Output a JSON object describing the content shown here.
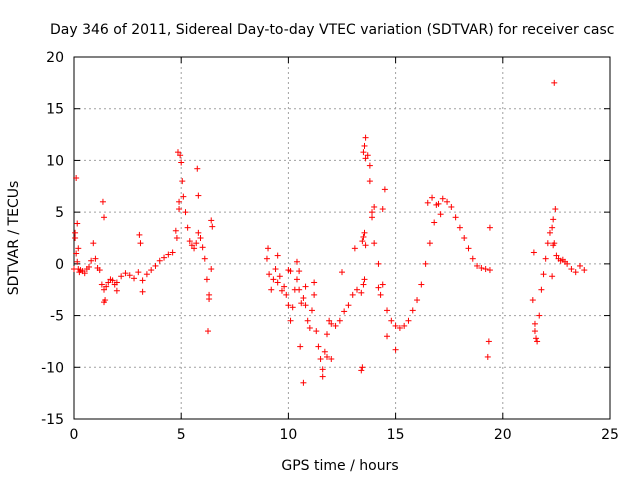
{
  "chart_data": {
    "type": "scatter",
    "title": "Day 346 of 2011, Sidereal Day-to-day VTEC variation (SDTVAR) for receiver casc",
    "xlabel": "GPS time / hours",
    "ylabel": "SDTVAR / TECUs",
    "xlim": [
      0,
      25
    ],
    "ylim": [
      -15,
      20
    ],
    "xticks": [
      0,
      5,
      10,
      15,
      20,
      25
    ],
    "yticks": [
      -15,
      -10,
      -5,
      0,
      5,
      10,
      15,
      20
    ],
    "xtick_labels": [
      "0",
      "5",
      "10",
      "15",
      "20",
      "25"
    ],
    "ytick_labels": [
      "-15",
      "-10",
      "-5",
      "0",
      "5",
      "10",
      "15",
      "20"
    ],
    "grid": true,
    "marker": "+",
    "series": [
      {
        "name": "SDTVAR",
        "color": "#ff0000",
        "x": [
          0.0,
          0.05,
          0.1,
          0.15,
          0.2,
          0.25,
          0.3,
          0.4,
          0.5,
          0.6,
          0.7,
          0.8,
          0.9,
          1.0,
          1.1,
          1.2,
          1.3,
          1.4,
          1.5,
          1.6,
          1.7,
          1.8,
          1.9,
          2.0,
          2.2,
          2.4,
          2.6,
          2.8,
          3.0,
          3.2,
          3.4,
          3.6,
          3.8,
          4.0,
          4.2,
          4.4,
          4.6,
          4.8,
          4.9,
          4.95,
          5.0,
          5.05,
          5.1,
          5.2,
          5.3,
          5.4,
          5.5,
          5.6,
          5.7,
          5.8,
          5.9,
          6.0,
          6.1,
          6.2,
          6.3,
          6.4,
          0.1,
          0.15,
          1.35,
          1.4,
          1.45,
          3.05,
          3.1,
          4.85,
          4.9,
          5.75,
          6.25,
          6.4,
          6.45,
          0.05,
          0.2,
          1.4,
          2.0,
          3.2,
          4.75,
          5.8,
          6.3,
          9.0,
          9.1,
          9.2,
          9.3,
          9.4,
          9.5,
          9.6,
          9.7,
          9.8,
          9.9,
          10.0,
          10.1,
          10.2,
          10.3,
          10.4,
          10.5,
          10.6,
          10.7,
          10.8,
          10.9,
          11.0,
          11.1,
          11.2,
          11.3,
          11.4,
          11.5,
          11.6,
          11.7,
          11.8,
          11.9,
          12.0,
          12.2,
          12.4,
          12.6,
          12.8,
          13.0,
          13.2,
          13.4,
          13.5,
          13.55,
          13.6,
          13.7,
          13.8,
          13.9,
          14.0,
          14.2,
          14.4,
          14.6,
          14.8,
          15.0,
          15.2,
          15.4,
          15.6,
          15.8,
          16.0,
          16.2,
          16.4,
          16.6,
          16.8,
          17.0,
          17.2,
          17.4,
          17.6,
          17.8,
          18.0,
          18.2,
          18.4,
          18.6,
          18.8,
          19.0,
          19.2,
          19.4,
          10.0,
          10.5,
          10.55,
          10.7,
          11.6,
          11.8,
          12.0,
          13.4,
          13.45,
          13.5,
          13.55,
          13.6,
          13.8,
          14.5,
          14.4,
          19.3,
          19.35,
          19.4,
          13.5,
          13.45,
          13.55,
          13.6,
          14.2,
          14.3,
          13.9,
          14.0,
          14.6,
          15.0,
          16.5,
          16.7,
          16.9,
          17.1,
          9.05,
          9.5,
          10.1,
          10.4,
          10.8,
          11.2,
          12.5,
          13.1,
          21.4,
          21.5,
          21.6,
          21.7,
          21.8,
          21.9,
          22.0,
          22.1,
          22.2,
          22.3,
          22.4,
          22.5,
          22.6,
          22.7,
          22.8,
          22.9,
          23.0,
          23.2,
          23.4,
          23.6,
          23.8,
          22.35,
          22.4,
          22.45,
          21.45,
          21.55,
          22.35,
          22.3,
          21.5
        ],
        "y": [
          -0.5,
          2.5,
          1.0,
          0.2,
          -0.5,
          -0.8,
          -0.6,
          -0.7,
          -0.9,
          -0.5,
          -0.3,
          0.3,
          2.0,
          0.5,
          -0.4,
          -0.6,
          -2.0,
          -2.5,
          -2.2,
          -1.8,
          -1.5,
          -1.6,
          -2.0,
          -1.8,
          -1.2,
          -0.9,
          -1.1,
          -1.4,
          -0.8,
          -1.6,
          -1.0,
          -0.6,
          -0.2,
          0.3,
          0.6,
          0.9,
          1.1,
          2.5,
          6.0,
          10.5,
          9.8,
          8.0,
          6.5,
          5.0,
          3.5,
          2.2,
          1.8,
          1.5,
          2.0,
          3.0,
          2.5,
          1.6,
          0.5,
          -1.5,
          -3.0,
          -0.5,
          8.3,
          3.9,
          6.0,
          4.5,
          -3.5,
          2.8,
          2.0,
          10.8,
          5.3,
          9.2,
          -6.5,
          4.2,
          3.6,
          3.0,
          1.5,
          -3.7,
          -2.6,
          -2.7,
          3.2,
          6.6,
          -3.4,
          0.5,
          -1.0,
          -2.5,
          -1.5,
          -0.5,
          -1.8,
          -1.2,
          -2.6,
          -2.2,
          -3.0,
          -4.0,
          -5.5,
          -4.2,
          -2.5,
          -1.5,
          -2.5,
          -3.8,
          -3.3,
          -4.0,
          -5.5,
          -6.2,
          -4.5,
          -3.0,
          -6.5,
          -8.0,
          -9.2,
          -10.2,
          -8.5,
          -6.8,
          -5.5,
          -5.8,
          -6.0,
          -5.5,
          -4.6,
          -4.0,
          -3.0,
          -2.5,
          -2.8,
          -2.0,
          -1.5,
          12.2,
          10.5,
          8.0,
          5.0,
          2.0,
          0.0,
          -2.0,
          -4.5,
          -5.5,
          -6.0,
          -6.2,
          -6.0,
          -5.5,
          -4.5,
          -3.5,
          -2.0,
          0.0,
          2.0,
          4.0,
          5.8,
          6.3,
          6.0,
          5.5,
          4.5,
          3.5,
          2.5,
          1.5,
          0.5,
          -0.2,
          -0.4,
          -0.5,
          -0.6,
          -0.6,
          -0.7,
          -8.0,
          -11.5,
          -10.9,
          -9.0,
          -9.2,
          -10.3,
          -10.0,
          10.8,
          11.4,
          10.2,
          9.5,
          7.2,
          5.3,
          -9.0,
          -7.5,
          3.5,
          2.6,
          2.2,
          3.0,
          1.8,
          -2.3,
          -3.0,
          4.5,
          5.5,
          -7.0,
          -8.3,
          5.9,
          6.4,
          5.7,
          4.8,
          1.5,
          0.8,
          -0.7,
          0.2,
          -2.2,
          -1.8,
          -0.8,
          1.5,
          -3.5,
          -5.8,
          -7.5,
          -5.0,
          -2.5,
          -1.0,
          0.5,
          2.0,
          3.0,
          3.5,
          2.0,
          0.8,
          0.5,
          0.3,
          0.4,
          0.2,
          0.0,
          -0.5,
          -0.8,
          -0.2,
          -0.6,
          4.3,
          17.5,
          5.3,
          1.1,
          -7.2,
          1.8,
          -1.2,
          -6.5
        ]
      }
    ]
  }
}
